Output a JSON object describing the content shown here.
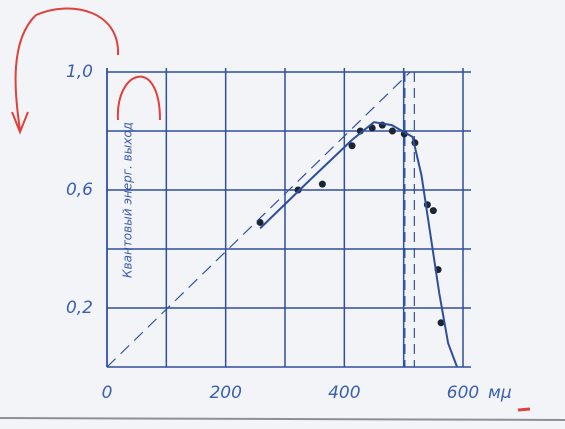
{
  "chart_data": {
    "type": "scatter",
    "ylabel": "Квантовый энерг. выход",
    "xunit": "мμ",
    "xlim": [
      0,
      600
    ],
    "ylim": [
      0,
      1.0
    ],
    "xticks": [
      0,
      {
        "value": 100,
        "label": null
      },
      200,
      {
        "value": 300,
        "label": null
      },
      400,
      {
        "value": 500,
        "label": null
      },
      600
    ],
    "yticks": [
      {
        "value": 0.2,
        "label": "0,2"
      },
      {
        "value": 0.4,
        "label": null
      },
      {
        "value": 0.6,
        "label": "0,6"
      },
      {
        "value": 0.8,
        "label": null
      },
      {
        "value": 1.0,
        "label": "1,0"
      }
    ],
    "grid": true,
    "color": "#2e4f9e",
    "series": [
      {
        "mode": "markers",
        "color": "#1d2433",
        "x": [
          258,
          322,
          363,
          413,
          427,
          447,
          464,
          481,
          501,
          519,
          540,
          550,
          558,
          563
        ],
        "values": [
          0.49,
          0.6,
          0.62,
          0.75,
          0.8,
          0.81,
          0.82,
          0.8,
          0.79,
          0.76,
          0.55,
          0.53,
          0.33,
          0.15
        ]
      },
      {
        "mode": "line",
        "color": "#2e4f9e",
        "x": [
          258,
          340,
          413,
          450,
          480,
          515,
          530,
          545,
          560,
          575,
          590
        ],
        "values": [
          0.47,
          0.63,
          0.77,
          0.83,
          0.82,
          0.78,
          0.65,
          0.45,
          0.25,
          0.08,
          0
        ]
      },
      {
        "mode": "line",
        "dash": true,
        "color": "#2e4f9e",
        "x": [
          0,
          511
        ],
        "values": [
          0,
          1.0
        ]
      }
    ],
    "vlines": [
      502,
      518
    ]
  }
}
